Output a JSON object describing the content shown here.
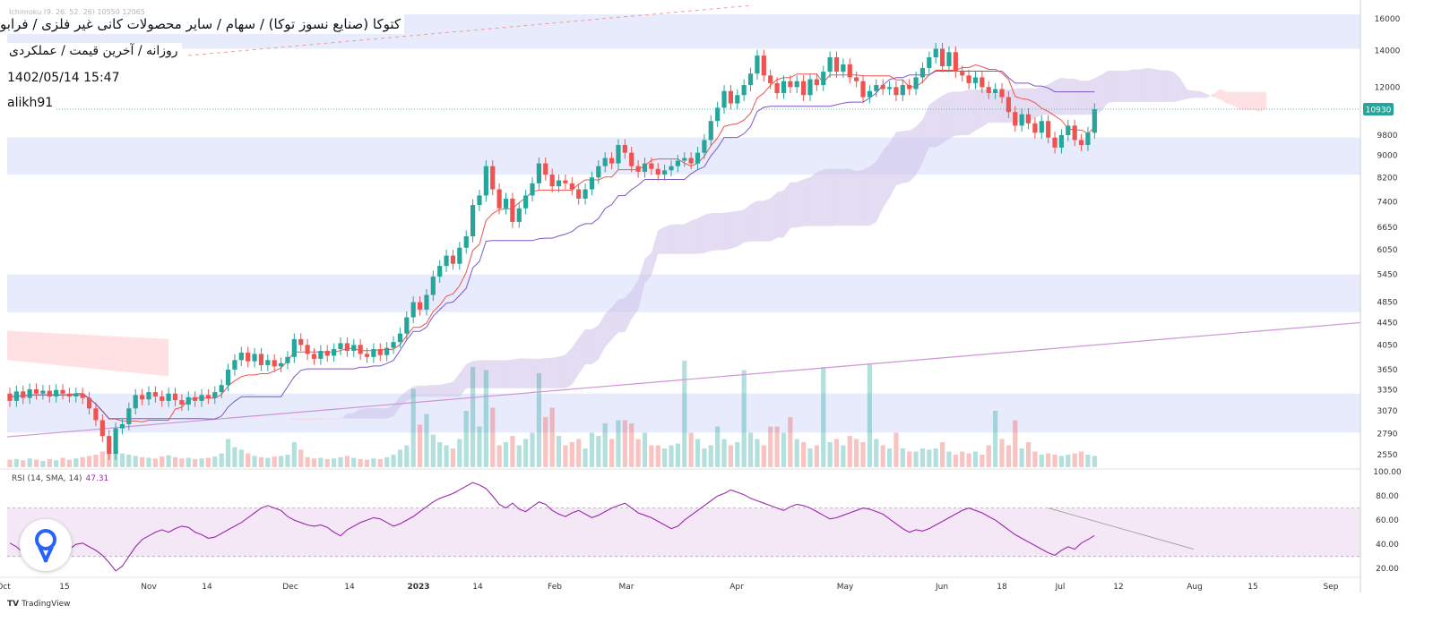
{
  "header": {
    "title": "کتوکا (صنایع نسوز توکا) / سهام / سایر محصولات کانی غیر فلزی / فرابورس",
    "subtitle": "روزانه / آخرین قیمت / عملکردی",
    "datetime": "1402/05/14 15:47",
    "author": "alikh91",
    "faint_legend": "Ichimoku (9, 26, 52, 26)  10550  12065"
  },
  "rsi": {
    "label": "RSI (14, SMA, 14)",
    "value": "47.31"
  },
  "branding": {
    "logo_text": "TV",
    "name": "TradingView"
  },
  "colors": {
    "up": "#26a69a",
    "down": "#ef5350",
    "tenkan": "#ef5350",
    "kijun": "#7e57c2",
    "rsi_line": "#9c27b0",
    "cloud_bull": "#d1c4e9",
    "cloud_bear": "#ffcdd2",
    "zone_band": "#e3e8fb",
    "last_price_bg": "#26a69a"
  },
  "chart_data": {
    "type": "candlestick",
    "scale": "log",
    "grid": false,
    "legend": "none",
    "price_axis": {
      "ticks": [
        2550,
        2790,
        3070,
        3350,
        3650,
        4050,
        4450,
        4850,
        5450,
        6050,
        6650,
        7400,
        8200,
        9000,
        9800,
        12000,
        14000,
        16000
      ],
      "last_price": 10930,
      "last_price_label": "10930"
    },
    "time_axis": {
      "labels": [
        "Oct",
        "15",
        "Nov",
        "14",
        "Dec",
        "14",
        "2023",
        "14",
        "Feb",
        "Mar",
        "Apr",
        "May",
        "Jun",
        "18",
        "Jul",
        "12",
        "Aug",
        "15",
        "Sep"
      ]
    },
    "zones": [
      [
        14100,
        16300
      ],
      [
        8300,
        9700
      ],
      [
        4650,
        5450
      ],
      [
        2800,
        3300
      ]
    ],
    "trendline": {
      "from": [
        2750,
        "Oct"
      ],
      "to": [
        4450,
        "Sep"
      ]
    },
    "candles": [
      [
        3300,
        3200
      ],
      [
        3200,
        3330
      ],
      [
        3330,
        3240
      ],
      [
        3240,
        3360
      ],
      [
        3360,
        3300
      ],
      [
        3300,
        3340
      ],
      [
        3340,
        3260
      ],
      [
        3260,
        3350
      ],
      [
        3350,
        3300
      ],
      [
        3300,
        3260
      ],
      [
        3260,
        3300
      ],
      [
        3300,
        3240
      ],
      [
        3240,
        3100
      ],
      [
        3100,
        2950
      ],
      [
        2950,
        2760
      ],
      [
        2760,
        2560
      ],
      [
        2560,
        2850
      ],
      [
        2850,
        2900
      ],
      [
        2900,
        3100
      ],
      [
        3100,
        3280
      ],
      [
        3280,
        3220
      ],
      [
        3220,
        3320
      ],
      [
        3320,
        3260
      ],
      [
        3260,
        3200
      ],
      [
        3200,
        3300
      ],
      [
        3300,
        3210
      ],
      [
        3210,
        3150
      ],
      [
        3150,
        3250
      ],
      [
        3250,
        3200
      ],
      [
        3200,
        3280
      ],
      [
        3280,
        3240
      ],
      [
        3240,
        3320
      ],
      [
        3320,
        3420
      ],
      [
        3420,
        3650
      ],
      [
        3650,
        3800
      ],
      [
        3800,
        3920
      ],
      [
        3920,
        3780
      ],
      [
        3780,
        3900
      ],
      [
        3900,
        3720
      ],
      [
        3720,
        3800
      ],
      [
        3800,
        3700
      ],
      [
        3700,
        3750
      ],
      [
        3750,
        3850
      ],
      [
        3850,
        4150
      ],
      [
        4150,
        4050
      ],
      [
        4050,
        3900
      ],
      [
        3900,
        3820
      ],
      [
        3820,
        3950
      ],
      [
        3950,
        3870
      ],
      [
        3870,
        3980
      ],
      [
        3980,
        4080
      ],
      [
        4080,
        3950
      ],
      [
        3950,
        4050
      ],
      [
        4050,
        3900
      ],
      [
        3900,
        3850
      ],
      [
        3850,
        3980
      ],
      [
        3980,
        3880
      ],
      [
        3880,
        4000
      ],
      [
        4000,
        4100
      ],
      [
        4100,
        4250
      ],
      [
        4250,
        4550
      ],
      [
        4550,
        4850
      ],
      [
        4850,
        4700
      ],
      [
        4700,
        5000
      ],
      [
        5000,
        5400
      ],
      [
        5400,
        5650
      ],
      [
        5650,
        5900
      ],
      [
        5900,
        5700
      ],
      [
        5700,
        6100
      ],
      [
        6100,
        6400
      ],
      [
        6400,
        7300
      ],
      [
        7300,
        7600
      ],
      [
        7600,
        8600
      ],
      [
        8600,
        7800
      ],
      [
        7800,
        7200
      ],
      [
        7200,
        7500
      ],
      [
        7500,
        6800
      ],
      [
        6800,
        7200
      ],
      [
        7200,
        7600
      ],
      [
        7600,
        8000
      ],
      [
        8000,
        8700
      ],
      [
        8700,
        8300
      ],
      [
        8300,
        7900
      ],
      [
        7900,
        8100
      ],
      [
        8100,
        8000
      ],
      [
        8000,
        7800
      ],
      [
        7800,
        7500
      ],
      [
        7500,
        7800
      ],
      [
        7800,
        8200
      ],
      [
        8200,
        8600
      ],
      [
        8600,
        8900
      ],
      [
        8900,
        8700
      ],
      [
        8700,
        9400
      ],
      [
        9400,
        9100
      ],
      [
        9100,
        8600
      ],
      [
        8600,
        8400
      ],
      [
        8400,
        8700
      ],
      [
        8700,
        8500
      ],
      [
        8500,
        8300
      ],
      [
        8300,
        8450
      ],
      [
        8450,
        8600
      ],
      [
        8600,
        8800
      ],
      [
        8800,
        8900
      ],
      [
        8900,
        8700
      ],
      [
        8700,
        9100
      ],
      [
        9100,
        9600
      ],
      [
        9600,
        10400
      ],
      [
        10400,
        11000
      ],
      [
        11000,
        11800
      ],
      [
        11800,
        11200
      ],
      [
        11200,
        11600
      ],
      [
        11600,
        12100
      ],
      [
        12100,
        12700
      ],
      [
        12700,
        13700
      ],
      [
        13700,
        12600
      ],
      [
        12600,
        12200
      ],
      [
        12200,
        11700
      ],
      [
        11700,
        12300
      ],
      [
        12300,
        12000
      ],
      [
        12000,
        12300
      ],
      [
        12300,
        11600
      ],
      [
        11600,
        12400
      ],
      [
        12400,
        12100
      ],
      [
        12100,
        12800
      ],
      [
        12800,
        13600
      ],
      [
        13600,
        12800
      ],
      [
        12800,
        13200
      ],
      [
        13200,
        12500
      ],
      [
        12500,
        12300
      ],
      [
        12300,
        11500
      ],
      [
        11500,
        11800
      ],
      [
        11800,
        12100
      ],
      [
        12100,
        11900
      ],
      [
        11900,
        12000
      ],
      [
        12000,
        11600
      ],
      [
        11600,
        12100
      ],
      [
        12100,
        11900
      ],
      [
        11900,
        12500
      ],
      [
        12500,
        13000
      ],
      [
        13000,
        13600
      ],
      [
        13600,
        14100
      ],
      [
        14100,
        13100
      ],
      [
        13100,
        13900
      ],
      [
        13900,
        12800
      ],
      [
        12800,
        12600
      ],
      [
        12600,
        12200
      ],
      [
        12200,
        12500
      ],
      [
        12500,
        12000
      ],
      [
        12000,
        11700
      ],
      [
        11700,
        11900
      ],
      [
        11900,
        11500
      ],
      [
        11500,
        10800
      ],
      [
        10800,
        10200
      ],
      [
        10200,
        10700
      ],
      [
        10700,
        10300
      ],
      [
        10300,
        9900
      ],
      [
        9900,
        10400
      ],
      [
        10400,
        9700
      ],
      [
        9700,
        9300
      ],
      [
        9300,
        9800
      ],
      [
        9800,
        10200
      ],
      [
        10200,
        9600
      ],
      [
        9600,
        9400
      ],
      [
        9400,
        9900
      ],
      [
        9900,
        10930
      ]
    ],
    "volume": [
      1.2,
      1.3,
      1.1,
      1.4,
      1.2,
      1.0,
      1.3,
      1.1,
      1.5,
      1.2,
      1.4,
      1.6,
      1.8,
      2.0,
      2.5,
      3.2,
      2.8,
      2.2,
      2.0,
      1.8,
      1.6,
      1.5,
      1.4,
      1.7,
      1.9,
      1.6,
      1.4,
      1.5,
      1.3,
      1.4,
      1.5,
      1.7,
      2.2,
      4.5,
      3.2,
      2.8,
      2.2,
      1.8,
      1.6,
      1.5,
      1.7,
      1.8,
      2.0,
      4.0,
      2.8,
      1.6,
      1.4,
      1.5,
      1.3,
      1.4,
      1.6,
      1.8,
      1.5,
      1.3,
      1.2,
      1.4,
      1.3,
      1.6,
      2.0,
      2.8,
      3.5,
      12.5,
      6.8,
      8.5,
      5.2,
      4.0,
      3.5,
      3.0,
      4.5,
      9.0,
      16.0,
      6.5,
      15.5,
      9.5,
      3.5,
      4.0,
      5.0,
      3.5,
      4.5,
      5.5,
      15.0,
      8.0,
      9.5,
      5.0,
      3.5,
      4.0,
      4.5,
      3.0,
      5.5,
      5.0,
      7.0,
      4.5,
      7.5,
      7.5,
      7.0,
      4.5,
      5.5,
      3.5,
      3.5,
      3.0,
      3.5,
      3.8,
      17.0,
      5.5,
      4.5,
      3.0,
      3.5,
      6.5,
      4.5,
      3.5,
      4.0,
      15.5,
      5.5,
      4.5,
      3.5,
      6.5,
      6.5,
      5.5,
      8.0,
      4.5,
      4.0,
      3.0,
      3.5,
      16.0,
      4.0,
      4.5,
      3.5,
      5.0,
      4.5,
      4.0,
      16.5,
      4.5,
      3.5,
      3.0,
      5.5,
      3.0,
      2.5,
      2.5,
      3.0,
      2.8,
      3.0,
      4.0,
      2.5,
      2.0,
      2.5,
      2.2,
      2.5,
      2.0,
      3.5,
      9.0,
      4.5,
      3.5,
      7.5,
      3.0,
      4.0,
      2.5,
      2.0,
      2.2,
      2.0,
      1.8,
      2.0,
      2.2,
      2.5,
      2.0,
      1.8,
      2.0,
      2.5,
      2.8,
      2.0,
      2.5,
      1.8,
      1.5,
      1.6
    ],
    "rsi_series": [
      41,
      38,
      33,
      30,
      27,
      24,
      21,
      24,
      31,
      36,
      40,
      41,
      38,
      35,
      31,
      25,
      18,
      22,
      30,
      38,
      44,
      47,
      50,
      52,
      50,
      53,
      55,
      54,
      50,
      48,
      45,
      46,
      49,
      52,
      55,
      58,
      62,
      66,
      70,
      72,
      70,
      68,
      63,
      60,
      58,
      56,
      55,
      56,
      54,
      50,
      47,
      52,
      55,
      58,
      60,
      62,
      61,
      58,
      55,
      57,
      60,
      63,
      67,
      71,
      75,
      78,
      80,
      82,
      85,
      88,
      91,
      89,
      86,
      80,
      73,
      70,
      74,
      69,
      67,
      71,
      75,
      73,
      68,
      65,
      63,
      66,
      68,
      65,
      62,
      64,
      67,
      70,
      72,
      74,
      70,
      66,
      64,
      62,
      59,
      56,
      53,
      55,
      60,
      64,
      68,
      72,
      76,
      80,
      82,
      85,
      83,
      81,
      78,
      76,
      74,
      72,
      70,
      68,
      71,
      73,
      72,
      70,
      67,
      64,
      61,
      62,
      64,
      66,
      68,
      70,
      69,
      67,
      65,
      61,
      57,
      53,
      50,
      52,
      51,
      53,
      56,
      59,
      62,
      65,
      68,
      70,
      68,
      66,
      63,
      60,
      56,
      52,
      48,
      45,
      42,
      39,
      36,
      33,
      31,
      35,
      38,
      36,
      41,
      44,
      47.31
    ],
    "rsi_axis": {
      "ticks": [
        20.0,
        40.0,
        60.0,
        80.0,
        100.0
      ],
      "band": [
        30,
        70
      ]
    }
  }
}
